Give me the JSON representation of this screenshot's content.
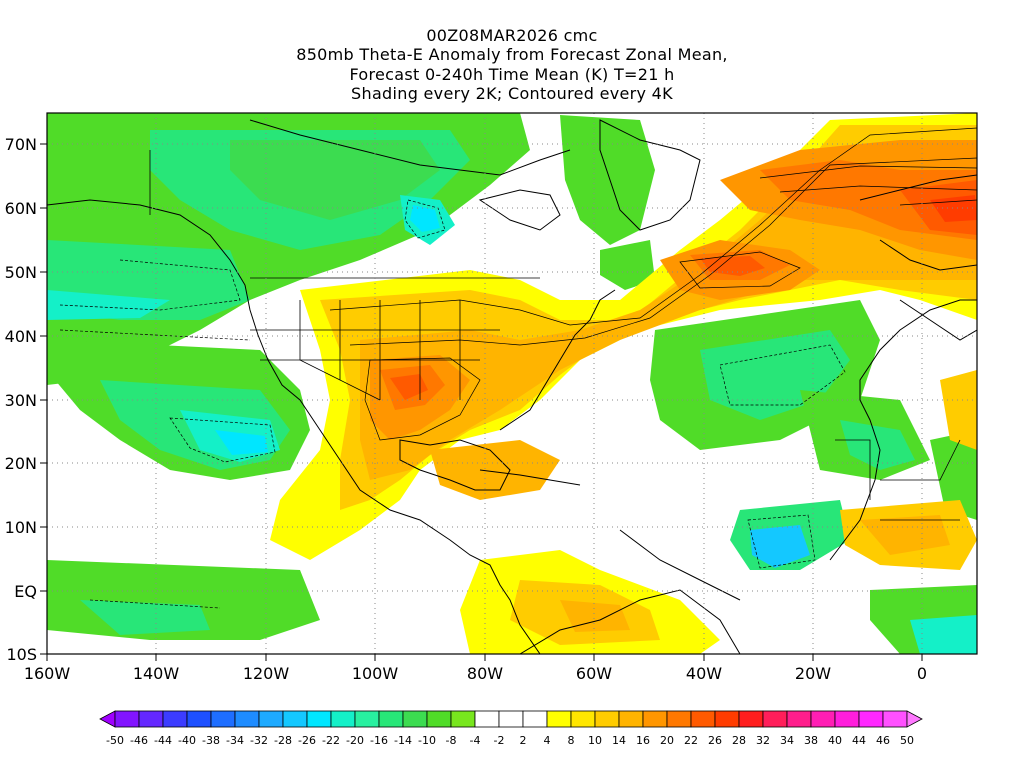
{
  "header": {
    "run": "00Z08MAR2026 cmc",
    "line2": "850mb Theta-E Anomaly from Forecast Zonal Mean,",
    "line3": "Forecast 0-240h Time Mean (K) T=21 h",
    "line4": "Shading every 2K; Contoured every 4K"
  },
  "map": {
    "lon_range": [
      -160,
      10
    ],
    "lat_range": [
      -10,
      75
    ],
    "lat_ticks": [
      "70N",
      "60N",
      "50N",
      "40N",
      "30N",
      "20N",
      "10N",
      "EQ",
      "10S"
    ],
    "lon_ticks": [
      "160W",
      "140W",
      "120W",
      "100W",
      "80W",
      "60W",
      "40W",
      "20W",
      "0"
    ],
    "grid_lines": "dotted"
  },
  "colorbar": {
    "labels": [
      "-50",
      "-46",
      "-44",
      "-40",
      "-38",
      "-34",
      "-32",
      "-28",
      "-26",
      "-22",
      "-20",
      "-16",
      "-14",
      "-10",
      "-8",
      "-4",
      "-2",
      "2",
      "4",
      "8",
      "10",
      "14",
      "16",
      "20",
      "22",
      "26",
      "28",
      "32",
      "34",
      "38",
      "40",
      "44",
      "46",
      "50"
    ],
    "colors": [
      "#a000ff",
      "#8214ff",
      "#6428ff",
      "#3c3cff",
      "#1e50ff",
      "#1e6eff",
      "#1e8cff",
      "#1eaaff",
      "#14c8ff",
      "#00e6ff",
      "#14f0c8",
      "#28f0a0",
      "#28e678",
      "#3cdc50",
      "#50dc28",
      "#78e61e",
      "#ffffff",
      "#ffffff",
      "#ffffff",
      "#ffff00",
      "#ffe600",
      "#ffcc00",
      "#ffb400",
      "#ff9600",
      "#ff7800",
      "#ff5a00",
      "#ff3c00",
      "#ff1e1e",
      "#ff1e5a",
      "#ff1e8c",
      "#ff1eb4",
      "#ff1edc",
      "#ff28ff",
      "#ff50ff",
      "#ff78ff"
    ]
  }
}
